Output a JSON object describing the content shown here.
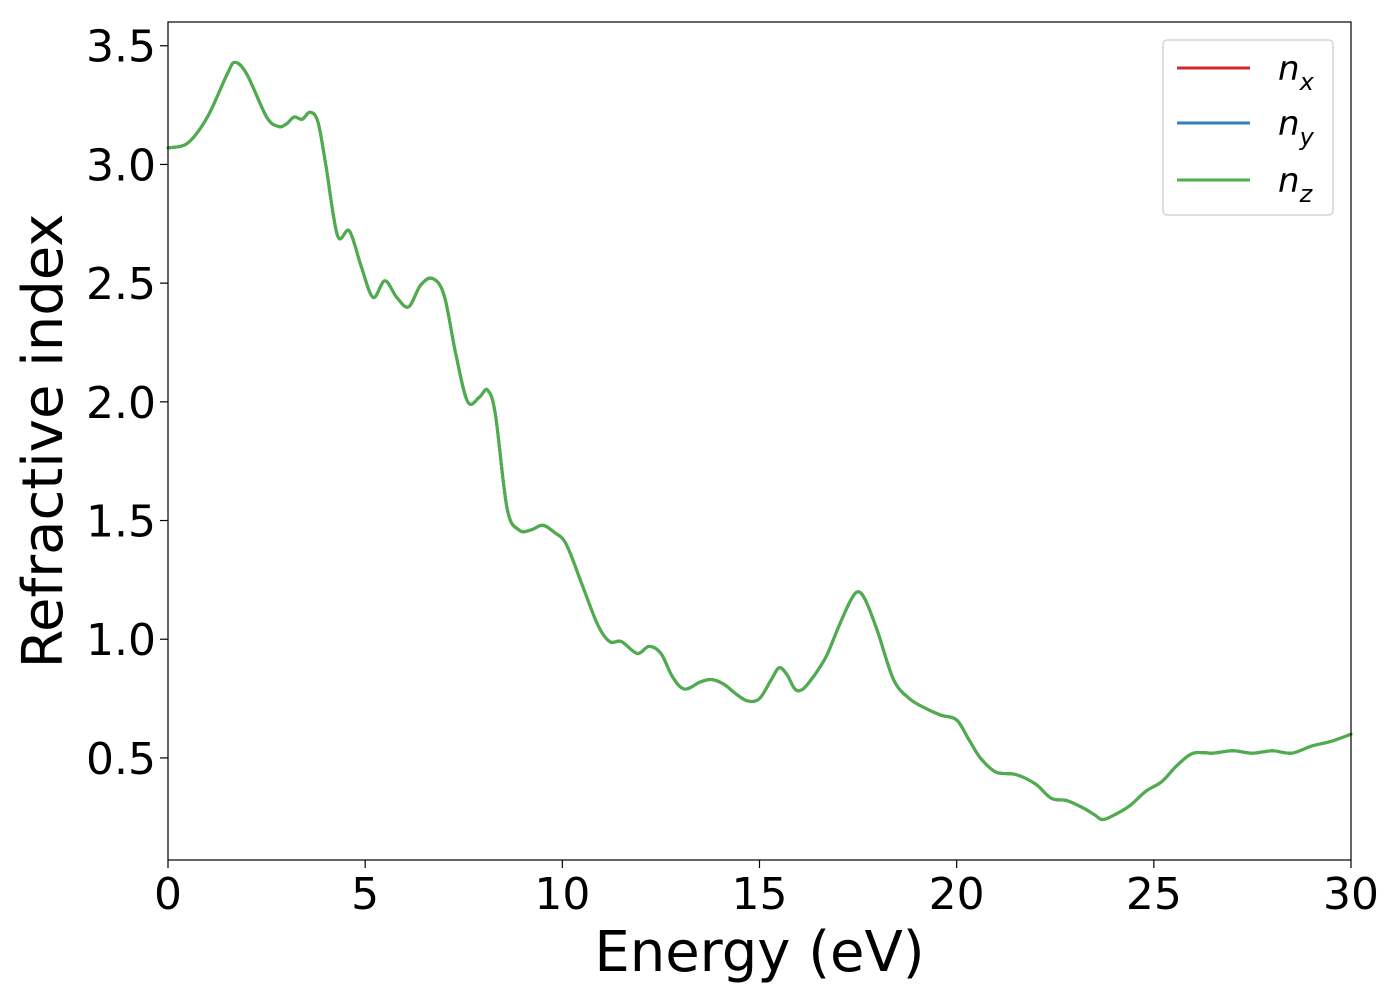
{
  "chart_data": {
    "type": "line",
    "xlabel": "Energy (eV)",
    "ylabel": "Refractive index",
    "xlim": [
      0,
      30
    ],
    "ylim": [
      0.07,
      3.6
    ],
    "xticks": [
      0,
      5,
      10,
      15,
      20,
      25,
      30
    ],
    "xtick_labels": [
      "0",
      "5",
      "10",
      "15",
      "20",
      "25",
      "30"
    ],
    "yticks": [
      0.5,
      1.0,
      1.5,
      2.0,
      2.5,
      3.0,
      3.5
    ],
    "ytick_labels": [
      "0.5",
      "1.0",
      "1.5",
      "2.0",
      "2.5",
      "3.0",
      "3.5"
    ],
    "grid": false,
    "legend_position": "top-right",
    "x": [
      0,
      0.5,
      1.0,
      1.5,
      1.7,
      2.0,
      2.5,
      2.8,
      3.0,
      3.2,
      3.4,
      3.6,
      3.8,
      4.0,
      4.3,
      4.6,
      4.9,
      5.2,
      5.5,
      5.8,
      6.1,
      6.4,
      6.7,
      7.0,
      7.3,
      7.6,
      7.9,
      8.1,
      8.3,
      8.6,
      8.9,
      9.2,
      9.5,
      9.8,
      10.1,
      10.5,
      10.9,
      11.2,
      11.5,
      11.9,
      12.2,
      12.5,
      12.8,
      13.1,
      13.5,
      13.8,
      14.1,
      14.4,
      14.7,
      15.0,
      15.3,
      15.5,
      15.7,
      15.9,
      16.1,
      16.4,
      16.7,
      17.0,
      17.3,
      17.5,
      17.7,
      18.0,
      18.4,
      18.8,
      19.2,
      19.6,
      20.0,
      20.3,
      20.6,
      21.0,
      21.5,
      22.0,
      22.4,
      22.8,
      23.2,
      23.5,
      23.7,
      24.0,
      24.4,
      24.8,
      25.2,
      25.6,
      26.0,
      26.5,
      27.0,
      27.5,
      28.0,
      28.5,
      29.0,
      29.5,
      30.0
    ],
    "series": [
      {
        "name": "n_x",
        "color": "#d62728",
        "y": [
          3.07,
          3.09,
          3.2,
          3.38,
          3.43,
          3.38,
          3.2,
          3.16,
          3.17,
          3.2,
          3.19,
          3.22,
          3.18,
          3.0,
          2.7,
          2.72,
          2.57,
          2.44,
          2.51,
          2.44,
          2.4,
          2.49,
          2.52,
          2.45,
          2.2,
          2.0,
          2.02,
          2.05,
          1.95,
          1.55,
          1.46,
          1.46,
          1.48,
          1.45,
          1.4,
          1.23,
          1.06,
          0.99,
          0.99,
          0.94,
          0.97,
          0.94,
          0.84,
          0.79,
          0.82,
          0.83,
          0.81,
          0.77,
          0.74,
          0.75,
          0.83,
          0.88,
          0.85,
          0.79,
          0.79,
          0.85,
          0.93,
          1.05,
          1.16,
          1.2,
          1.16,
          1.03,
          0.83,
          0.75,
          0.71,
          0.68,
          0.66,
          0.58,
          0.5,
          0.44,
          0.43,
          0.39,
          0.33,
          0.32,
          0.29,
          0.26,
          0.24,
          0.26,
          0.3,
          0.36,
          0.4,
          0.47,
          0.52,
          0.52,
          0.53,
          0.52,
          0.53,
          0.52,
          0.55,
          0.57,
          0.6
        ]
      },
      {
        "name": "n_y",
        "color": "#377eb8",
        "y": [
          3.07,
          3.09,
          3.2,
          3.38,
          3.43,
          3.38,
          3.2,
          3.16,
          3.17,
          3.2,
          3.19,
          3.22,
          3.18,
          3.0,
          2.7,
          2.72,
          2.57,
          2.44,
          2.51,
          2.44,
          2.4,
          2.49,
          2.52,
          2.45,
          2.2,
          2.0,
          2.02,
          2.05,
          1.95,
          1.55,
          1.46,
          1.46,
          1.48,
          1.45,
          1.4,
          1.23,
          1.06,
          0.99,
          0.99,
          0.94,
          0.97,
          0.94,
          0.84,
          0.79,
          0.82,
          0.83,
          0.81,
          0.77,
          0.74,
          0.75,
          0.83,
          0.88,
          0.85,
          0.79,
          0.79,
          0.85,
          0.93,
          1.05,
          1.16,
          1.2,
          1.16,
          1.03,
          0.83,
          0.75,
          0.71,
          0.68,
          0.66,
          0.58,
          0.5,
          0.44,
          0.43,
          0.39,
          0.33,
          0.32,
          0.29,
          0.26,
          0.24,
          0.26,
          0.3,
          0.36,
          0.4,
          0.47,
          0.52,
          0.52,
          0.53,
          0.52,
          0.53,
          0.52,
          0.55,
          0.57,
          0.6
        ]
      },
      {
        "name": "n_z",
        "color": "#4daf4a",
        "y": [
          3.07,
          3.09,
          3.2,
          3.38,
          3.43,
          3.38,
          3.2,
          3.16,
          3.17,
          3.2,
          3.19,
          3.22,
          3.18,
          3.0,
          2.7,
          2.72,
          2.57,
          2.44,
          2.51,
          2.44,
          2.4,
          2.49,
          2.52,
          2.45,
          2.2,
          2.0,
          2.02,
          2.05,
          1.95,
          1.55,
          1.46,
          1.46,
          1.48,
          1.45,
          1.4,
          1.23,
          1.06,
          0.99,
          0.99,
          0.94,
          0.97,
          0.94,
          0.84,
          0.79,
          0.82,
          0.83,
          0.81,
          0.77,
          0.74,
          0.75,
          0.83,
          0.88,
          0.85,
          0.79,
          0.79,
          0.85,
          0.93,
          1.05,
          1.16,
          1.2,
          1.16,
          1.03,
          0.83,
          0.75,
          0.71,
          0.68,
          0.66,
          0.58,
          0.5,
          0.44,
          0.43,
          0.39,
          0.33,
          0.32,
          0.29,
          0.26,
          0.24,
          0.26,
          0.3,
          0.36,
          0.4,
          0.47,
          0.52,
          0.52,
          0.53,
          0.52,
          0.53,
          0.52,
          0.55,
          0.57,
          0.6
        ]
      }
    ],
    "legend": [
      {
        "base": "n",
        "sub": "x",
        "color": "#d62728"
      },
      {
        "base": "n",
        "sub": "y",
        "color": "#377eb8"
      },
      {
        "base": "n",
        "sub": "z",
        "color": "#4daf4a"
      }
    ]
  }
}
